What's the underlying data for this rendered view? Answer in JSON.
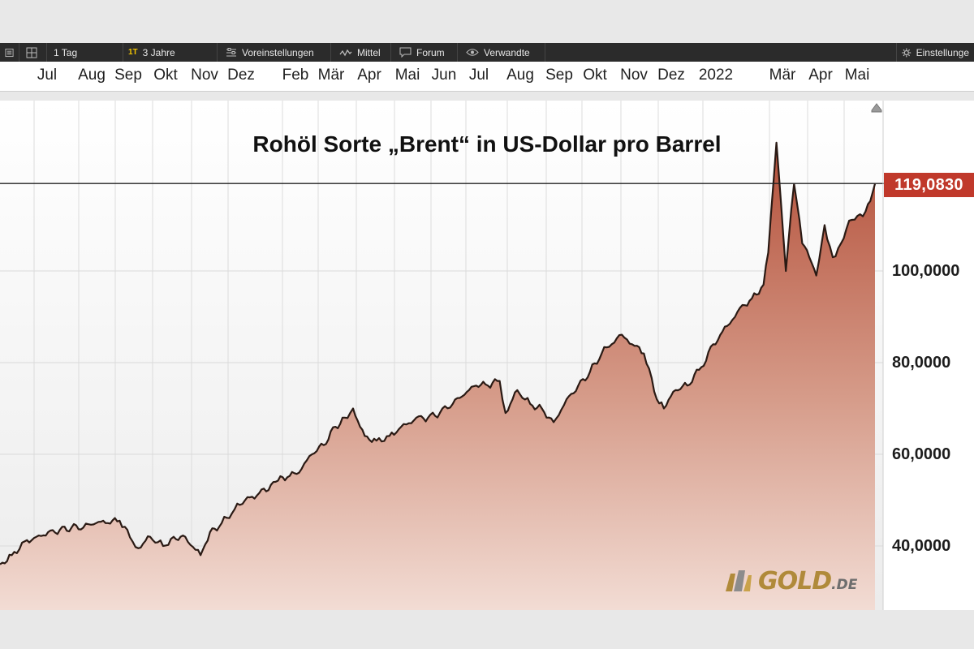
{
  "toolbar": {
    "items": [
      {
        "label": "",
        "icon": "menu-icon"
      },
      {
        "label": "",
        "icon": "grid-icon"
      },
      {
        "label": "1 Tag",
        "icon": ""
      },
      {
        "badge": "1T",
        "label": "3 Jahre",
        "icon": ""
      },
      {
        "label": "Voreinstellungen",
        "icon": "sliders-icon"
      },
      {
        "label": "Mittel",
        "icon": "wave-icon"
      },
      {
        "label": "Forum",
        "icon": "chat-icon"
      },
      {
        "label": "Verwandte",
        "icon": "eye-icon"
      },
      {
        "label": "Einstellunge",
        "icon": "gear-icon"
      }
    ]
  },
  "months": [
    "Jul",
    "Aug",
    "Sep",
    "Okt",
    "Nov",
    "Dez",
    "Feb",
    "Mär",
    "Apr",
    "Mai",
    "Jun",
    "Jul",
    "Aug",
    "Sep",
    "Okt",
    "Nov",
    "Dez",
    "2022",
    "Mär",
    "Apr",
    "Mai"
  ],
  "logo": {
    "text": "GOLD",
    "suffix": ".DE",
    "colors": {
      "gold": "#b08a3a",
      "gray": "#6e6e6e"
    }
  },
  "chart_data": {
    "type": "area",
    "title": "Rohöl Sorte „Brent“ in US-Dollar pro Barrel",
    "last_value_label": "119,0830",
    "last_value": 119.083,
    "y_ticks": [
      {
        "value": 40,
        "label": "40,0000"
      },
      {
        "value": 60,
        "label": "60,0000"
      },
      {
        "value": 80,
        "label": "80,0000"
      },
      {
        "value": 100,
        "label": "100,0000"
      }
    ],
    "ylim": [
      25,
      130
    ],
    "x_range": [
      "2020-05-15",
      "2022-05-31"
    ],
    "grid": true,
    "colors": {
      "line": "#2a1a14",
      "fill_top": "#b7543a",
      "fill_bottom": "#f0d8d0",
      "badge": "#c0392b"
    },
    "series": [
      {
        "x": [
          "2020-05-15",
          "2020-05-25",
          "2020-06-05",
          "2020-06-15",
          "2020-06-25",
          "2020-07-05",
          "2020-07-15",
          "2020-07-25",
          "2020-08-05",
          "2020-08-15",
          "2020-08-25",
          "2020-09-05",
          "2020-09-10",
          "2020-09-20",
          "2020-10-01",
          "2020-10-10",
          "2020-10-20",
          "2020-11-02",
          "2020-11-10",
          "2020-11-20",
          "2020-12-01",
          "2020-12-10",
          "2020-12-20",
          "2021-01-05",
          "2021-01-15",
          "2021-01-25",
          "2021-02-05",
          "2021-02-15",
          "2021-02-25",
          "2021-03-05",
          "2021-03-12",
          "2021-03-22",
          "2021-04-01",
          "2021-04-12",
          "2021-04-22",
          "2021-05-05",
          "2021-05-15",
          "2021-05-25",
          "2021-06-05",
          "2021-06-15",
          "2021-06-25",
          "2021-07-05",
          "2021-07-15",
          "2021-07-20",
          "2021-07-30",
          "2021-08-10",
          "2021-08-20",
          "2021-08-30",
          "2021-09-10",
          "2021-09-20",
          "2021-09-30",
          "2021-10-10",
          "2021-10-25",
          "2021-11-05",
          "2021-11-15",
          "2021-11-26",
          "2021-12-02",
          "2021-12-12",
          "2021-12-22",
          "2022-01-03",
          "2022-01-13",
          "2022-01-25",
          "2022-02-05",
          "2022-02-15",
          "2022-02-25",
          "2022-03-01",
          "2022-03-08",
          "2022-03-16",
          "2022-03-23",
          "2022-03-30",
          "2022-04-05",
          "2022-04-11",
          "2022-04-18",
          "2022-04-25",
          "2022-05-02",
          "2022-05-09",
          "2022-05-16",
          "2022-05-23",
          "2022-05-31"
        ],
        "y": [
          36,
          38,
          41,
          42,
          43,
          43.5,
          44,
          44,
          45,
          45,
          45.5,
          41,
          39.5,
          42,
          40,
          42,
          42,
          38,
          43,
          45,
          48,
          50,
          51,
          54,
          55,
          56,
          60,
          62,
          66,
          68,
          70,
          64,
          63,
          64,
          66,
          68,
          68,
          69,
          71,
          73,
          75,
          75,
          76,
          69,
          74,
          71,
          70,
          67,
          72,
          75,
          78,
          82,
          86,
          84,
          82,
          72,
          70,
          74,
          75,
          79,
          84,
          88,
          92,
          94,
          97,
          104,
          128,
          100,
          119,
          106,
          103,
          99,
          110,
          103,
          106,
          111,
          112,
          113,
          119
        ]
      }
    ]
  }
}
